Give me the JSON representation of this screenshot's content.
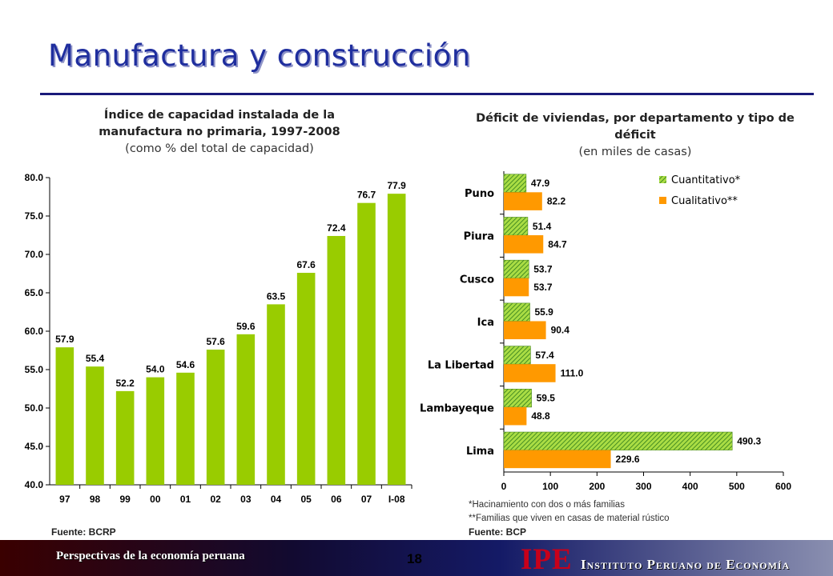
{
  "slide": {
    "title": "Manufactura y construcción",
    "page_number": "18",
    "footer_left": "Perspectivas de la economía peruana",
    "logo_text": "IPE",
    "logo_name": "Instituto Peruano de Economía"
  },
  "colors": {
    "bar_green": "#99cc00",
    "hatch_green": "#66aa22",
    "bar_orange": "#ff9900",
    "title_blue": "#1f2e9e",
    "logo_red": "#c8001a"
  },
  "left_chart": {
    "title": "Índice de capacidad instalada de la manufactura no primaria, 1997-2008",
    "subtitle": "(como % del total de capacidad)",
    "source": "Fuente: BCRP"
  },
  "right_chart": {
    "title": "Déficit de viviendas, por departamento y tipo de déficit",
    "subtitle": "(en miles de casas)",
    "source": "Fuente: BCP",
    "notes": [
      "*Hacinamiento con dos o más familias",
      "**Familias que viven en casas de material rústico"
    ]
  },
  "chart_data": [
    {
      "type": "bar",
      "title": "Índice de capacidad instalada de la manufactura no primaria, 1997-2008",
      "categories": [
        "97",
        "98",
        "99",
        "00",
        "01",
        "02",
        "03",
        "04",
        "05",
        "06",
        "07",
        "I-08"
      ],
      "values": [
        57.9,
        55.4,
        52.2,
        54.0,
        54.6,
        57.6,
        59.6,
        63.5,
        67.6,
        72.4,
        76.7,
        77.9
      ],
      "value_labels": [
        "57.9",
        "55.4",
        "52.2",
        "54.0",
        "54.6",
        "57.6",
        "59.6",
        "63.5",
        "67.6",
        "72.4",
        "76.7",
        "77.9"
      ],
      "ylim": [
        40,
        80
      ],
      "yticks": [
        "40.0",
        "45.0",
        "50.0",
        "55.0",
        "60.0",
        "65.0",
        "70.0",
        "75.0",
        "80.0"
      ],
      "grid": false,
      "legend": "none"
    },
    {
      "type": "bar",
      "orientation": "horizontal",
      "title": "Déficit de viviendas, por departamento y tipo de déficit",
      "categories": [
        "Puno",
        "Piura",
        "Cusco",
        "Ica",
        "La Libertad",
        "Lambayeque",
        "Lima"
      ],
      "series": [
        {
          "name": "Cuantitativo*",
          "values": [
            47.9,
            51.4,
            53.7,
            55.9,
            57.4,
            59.5,
            490.3
          ],
          "labels": [
            "47.9",
            "51.4",
            "53.7",
            "55.9",
            "57.4",
            "59.5",
            "490.3"
          ]
        },
        {
          "name": "Cualitativo**",
          "values": [
            82.2,
            84.7,
            53.7,
            90.4,
            111.0,
            48.8,
            229.6
          ],
          "labels": [
            "82.2",
            "84.7",
            "53.7",
            "90.4",
            "111.0",
            "48.8",
            "229.6"
          ]
        }
      ],
      "xlim": [
        0,
        600
      ],
      "xticks": [
        "0",
        "100",
        "200",
        "300",
        "400",
        "500",
        "600"
      ],
      "grid": false,
      "legend": "top-right"
    }
  ]
}
